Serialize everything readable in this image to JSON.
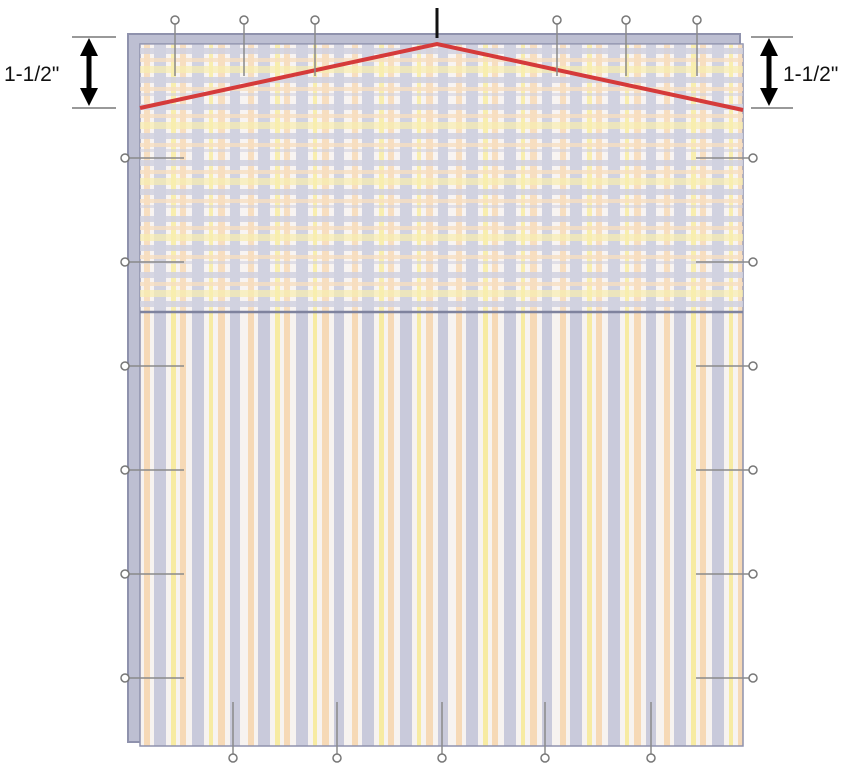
{
  "labels": {
    "left_measure": "1-1/2\"",
    "right_measure": "1-1/2\""
  },
  "colors": {
    "backing_board": "#bdbfd2",
    "board_edge": "#8f92ad",
    "fabric_base": "#f7f3f0",
    "stripe_lavender": "#c9cadb",
    "stripe_yellow": "#f7eba2",
    "stripe_peach": "#f6d9b6",
    "panel_seam": "#7f839e",
    "cut_line": "#d53a3a",
    "pin": "#8a8a8a",
    "arrow": "#000000",
    "guide_line": "#999999"
  },
  "icons": {
    "pins": "straight-pin-icon",
    "arrows": "double-headed-arrow-icon"
  }
}
